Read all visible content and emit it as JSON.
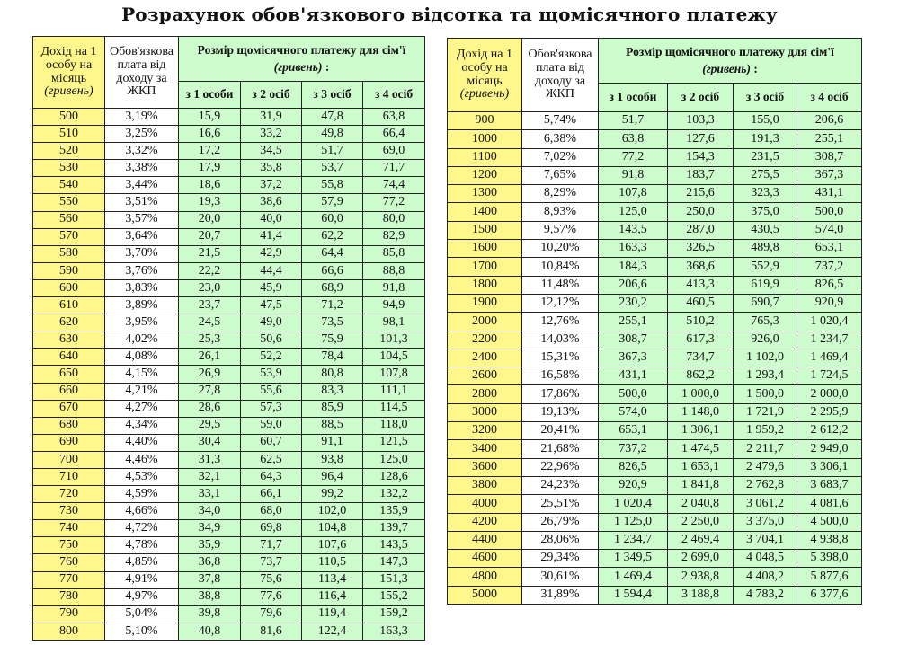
{
  "title": "Розрахунок обов'язкового відсотка та щомісячного платежу",
  "header": {
    "income_l1": "Дохід на 1 особу на місяць",
    "income_unit": "(гривень)",
    "share": "Обов'язкова плата від доходу за ЖКП",
    "payment": "Розмір щомісячного платежу для сім'ї",
    "payment_unit": "(гривень)",
    "payment_colon": " :",
    "cols": [
      "з 1 особи",
      "з 2 осіб",
      "з 3 осіб",
      "з 4 осіб"
    ]
  },
  "colors": {
    "income_bg": "#fff68c",
    "payment_bg": "#cdfccd"
  },
  "left_table": [
    [
      "500",
      "3,19%",
      "15,9",
      "31,9",
      "47,8",
      "63,8"
    ],
    [
      "510",
      "3,25%",
      "16,6",
      "33,2",
      "49,8",
      "66,4"
    ],
    [
      "520",
      "3,32%",
      "17,2",
      "34,5",
      "51,7",
      "69,0"
    ],
    [
      "530",
      "3,38%",
      "17,9",
      "35,8",
      "53,7",
      "71,7"
    ],
    [
      "540",
      "3,44%",
      "18,6",
      "37,2",
      "55,8",
      "74,4"
    ],
    [
      "550",
      "3,51%",
      "19,3",
      "38,6",
      "57,9",
      "77,2"
    ],
    [
      "560",
      "3,57%",
      "20,0",
      "40,0",
      "60,0",
      "80,0"
    ],
    [
      "570",
      "3,64%",
      "20,7",
      "41,4",
      "62,2",
      "82,9"
    ],
    [
      "580",
      "3,70%",
      "21,5",
      "42,9",
      "64,4",
      "85,8"
    ],
    [
      "590",
      "3,76%",
      "22,2",
      "44,4",
      "66,6",
      "88,8"
    ],
    [
      "600",
      "3,83%",
      "23,0",
      "45,9",
      "68,9",
      "91,8"
    ],
    [
      "610",
      "3,89%",
      "23,7",
      "47,5",
      "71,2",
      "94,9"
    ],
    [
      "620",
      "3,95%",
      "24,5",
      "49,0",
      "73,5",
      "98,1"
    ],
    [
      "630",
      "4,02%",
      "25,3",
      "50,6",
      "75,9",
      "101,3"
    ],
    [
      "640",
      "4,08%",
      "26,1",
      "52,2",
      "78,4",
      "104,5"
    ],
    [
      "650",
      "4,15%",
      "26,9",
      "53,9",
      "80,8",
      "107,8"
    ],
    [
      "660",
      "4,21%",
      "27,8",
      "55,6",
      "83,3",
      "111,1"
    ],
    [
      "670",
      "4,27%",
      "28,6",
      "57,3",
      "85,9",
      "114,5"
    ],
    [
      "680",
      "4,34%",
      "29,5",
      "59,0",
      "88,5",
      "118,0"
    ],
    [
      "690",
      "4,40%",
      "30,4",
      "60,7",
      "91,1",
      "121,5"
    ],
    [
      "700",
      "4,46%",
      "31,3",
      "62,5",
      "93,8",
      "125,0"
    ],
    [
      "710",
      "4,53%",
      "32,1",
      "64,3",
      "96,4",
      "128,6"
    ],
    [
      "720",
      "4,59%",
      "33,1",
      "66,1",
      "99,2",
      "132,2"
    ],
    [
      "730",
      "4,66%",
      "34,0",
      "68,0",
      "102,0",
      "135,9"
    ],
    [
      "740",
      "4,72%",
      "34,9",
      "69,8",
      "104,8",
      "139,7"
    ],
    [
      "750",
      "4,78%",
      "35,9",
      "71,7",
      "107,6",
      "143,5"
    ],
    [
      "760",
      "4,85%",
      "36,8",
      "73,7",
      "110,5",
      "147,3"
    ],
    [
      "770",
      "4,91%",
      "37,8",
      "75,6",
      "113,4",
      "151,3"
    ],
    [
      "780",
      "4,97%",
      "38,8",
      "77,6",
      "116,4",
      "155,2"
    ],
    [
      "790",
      "5,04%",
      "39,8",
      "79,6",
      "119,4",
      "159,2"
    ],
    [
      "800",
      "5,10%",
      "40,8",
      "81,6",
      "122,4",
      "163,3"
    ]
  ],
  "right_table": [
    [
      "900",
      "5,74%",
      "51,7",
      "103,3",
      "155,0",
      "206,6"
    ],
    [
      "1000",
      "6,38%",
      "63,8",
      "127,6",
      "191,3",
      "255,1"
    ],
    [
      "1100",
      "7,02%",
      "77,2",
      "154,3",
      "231,5",
      "308,7"
    ],
    [
      "1200",
      "7,65%",
      "91,8",
      "183,7",
      "275,5",
      "367,3"
    ],
    [
      "1300",
      "8,29%",
      "107,8",
      "215,6",
      "323,3",
      "431,1"
    ],
    [
      "1400",
      "8,93%",
      "125,0",
      "250,0",
      "375,0",
      "500,0"
    ],
    [
      "1500",
      "9,57%",
      "143,5",
      "287,0",
      "430,5",
      "574,0"
    ],
    [
      "1600",
      "10,20%",
      "163,3",
      "326,5",
      "489,8",
      "653,1"
    ],
    [
      "1700",
      "10,84%",
      "184,3",
      "368,6",
      "552,9",
      "737,2"
    ],
    [
      "1800",
      "11,48%",
      "206,6",
      "413,3",
      "619,9",
      "826,5"
    ],
    [
      "1900",
      "12,12%",
      "230,2",
      "460,5",
      "690,7",
      "920,9"
    ],
    [
      "2000",
      "12,76%",
      "255,1",
      "510,2",
      "765,3",
      "1 020,4"
    ],
    [
      "2200",
      "14,03%",
      "308,7",
      "617,3",
      "926,0",
      "1 234,7"
    ],
    [
      "2400",
      "15,31%",
      "367,3",
      "734,7",
      "1 102,0",
      "1 469,4"
    ],
    [
      "2600",
      "16,58%",
      "431,1",
      "862,2",
      "1 293,4",
      "1 724,5"
    ],
    [
      "2800",
      "17,86%",
      "500,0",
      "1 000,0",
      "1 500,0",
      "2 000,0"
    ],
    [
      "3000",
      "19,13%",
      "574,0",
      "1 148,0",
      "1 721,9",
      "2 295,9"
    ],
    [
      "3200",
      "20,41%",
      "653,1",
      "1 306,1",
      "1 959,2",
      "2 612,2"
    ],
    [
      "3400",
      "21,68%",
      "737,2",
      "1 474,5",
      "2 211,7",
      "2 949,0"
    ],
    [
      "3600",
      "22,96%",
      "826,5",
      "1 653,1",
      "2 479,6",
      "3 306,1"
    ],
    [
      "3800",
      "24,23%",
      "920,9",
      "1 841,8",
      "2 762,8",
      "3 683,7"
    ],
    [
      "4000",
      "25,51%",
      "1 020,4",
      "2 040,8",
      "3 061,2",
      "4 081,6"
    ],
    [
      "4200",
      "26,79%",
      "1 125,0",
      "2 250,0",
      "3 375,0",
      "4 500,0"
    ],
    [
      "4400",
      "28,06%",
      "1 234,7",
      "2 469,4",
      "3 704,1",
      "4 938,8"
    ],
    [
      "4600",
      "29,34%",
      "1 349,5",
      "2 699,0",
      "4 048,5",
      "5 398,0"
    ],
    [
      "4800",
      "30,61%",
      "1 469,4",
      "2 938,8",
      "4 408,2",
      "5 877,6"
    ],
    [
      "5000",
      "31,89%",
      "1 594,4",
      "3 188,8",
      "4 783,2",
      "6 377,6"
    ]
  ]
}
